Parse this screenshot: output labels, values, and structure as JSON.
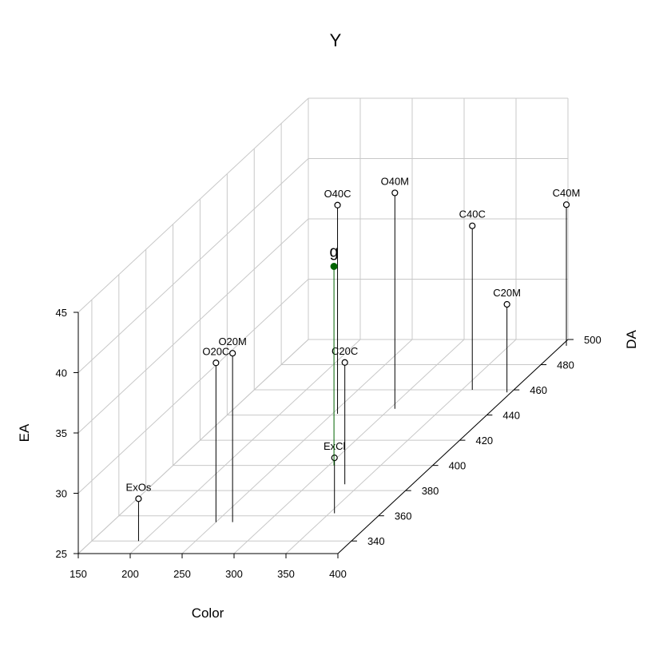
{
  "chart_data": {
    "type": "scatter3d",
    "title": "Y",
    "xlabel": "Color",
    "ylabel": "DA",
    "zlabel": "EA",
    "xlim": [
      150,
      400
    ],
    "ylim": [
      330,
      500
    ],
    "zlim": [
      25,
      45
    ],
    "xticks": [
      150,
      200,
      250,
      300,
      350,
      400
    ],
    "yticks": [
      340,
      360,
      380,
      400,
      420,
      440,
      460,
      480,
      500
    ],
    "zticks": [
      25,
      30,
      35,
      40,
      45
    ],
    "grid": true,
    "colors": {
      "points": "#000000",
      "highlight": "#006400",
      "grid": "#c8c8c8"
    },
    "points": [
      {
        "label": "ExOs",
        "x": 195,
        "y": 340,
        "z": 28.5
      },
      {
        "label": "O20C",
        "x": 250,
        "y": 355,
        "z": 38.2
      },
      {
        "label": "O20M",
        "x": 266,
        "y": 355,
        "z": 39.0
      },
      {
        "label": "ExCl",
        "x": 355,
        "y": 362,
        "z": 29.6
      },
      {
        "label": "C20C",
        "x": 335,
        "y": 385,
        "z": 35.1
      },
      {
        "label": "O40C",
        "x": 255,
        "y": 441,
        "z": 42.3
      },
      {
        "label": "O40M",
        "x": 305,
        "y": 445,
        "z": 42.9
      },
      {
        "label": "C40C",
        "x": 360,
        "y": 460,
        "z": 38.6
      },
      {
        "label": "C20M",
        "x": 396,
        "y": 458,
        "z": 32.3
      },
      {
        "label": "C40M",
        "x": 405,
        "y": 495,
        "z": 36.7
      },
      {
        "label": "g",
        "x": 305,
        "y": 400,
        "z": 41.5,
        "highlight": true
      }
    ]
  }
}
